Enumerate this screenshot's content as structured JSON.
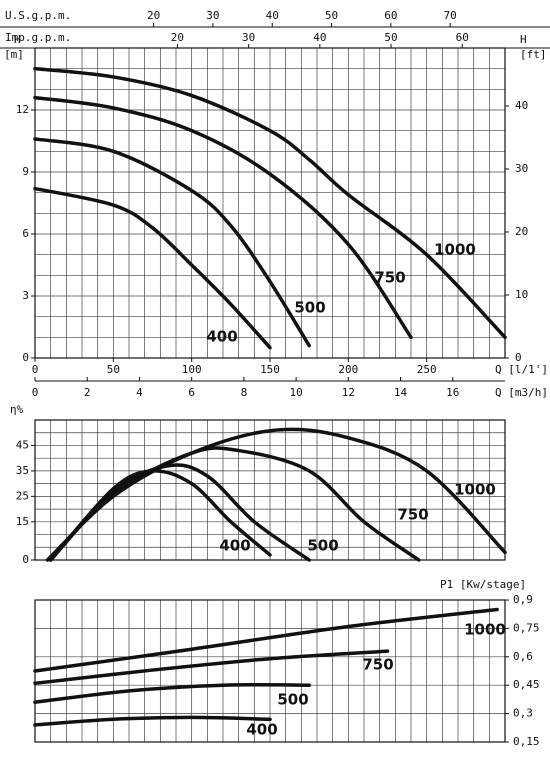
{
  "chart_data": [
    {
      "type": "line",
      "ylabel": "H",
      "yunit": "[m]",
      "ylim": [
        0,
        15
      ],
      "yticks": [
        0,
        3,
        6,
        9,
        12
      ],
      "y2label": "H",
      "y2unit": "[ft]",
      "y2lim": [
        0,
        49.2
      ],
      "y2ticks": [
        0,
        10,
        20,
        30,
        40
      ],
      "xlabel": "Q [l/1']",
      "xlim": [
        0,
        300
      ],
      "xticks": [
        0,
        50,
        100,
        150,
        200,
        250
      ],
      "x_grid_step": 10,
      "y_grid_step": 1,
      "extra_x_axes": [
        {
          "label": "Q [m3/h]",
          "lim": [
            0,
            18
          ],
          "ticks": [
            0,
            2,
            4,
            6,
            8,
            10,
            12,
            14,
            16
          ]
        },
        {
          "label": "U.S.g.p.m.",
          "lim": [
            0,
            79.25
          ],
          "ticks": [
            20,
            30,
            40,
            50,
            60,
            70
          ]
        },
        {
          "label": "Imp.g.p.m.",
          "lim": [
            0,
            66
          ],
          "ticks": [
            20,
            30,
            40,
            50,
            60
          ]
        }
      ],
      "series": [
        {
          "name": "1000",
          "color": "#111111",
          "x": [
            0,
            50,
            100,
            150,
            175,
            200,
            250,
            300
          ],
          "values": [
            14.0,
            13.6,
            12.7,
            11.0,
            9.6,
            7.9,
            5.0,
            1.0
          ]
        },
        {
          "name": "750",
          "color": "#111111",
          "x": [
            0,
            50,
            100,
            150,
            200,
            240
          ],
          "values": [
            12.6,
            12.1,
            11.0,
            8.9,
            5.5,
            1.0
          ]
        },
        {
          "name": "500",
          "color": "#111111",
          "x": [
            0,
            50,
            100,
            125,
            150,
            175
          ],
          "values": [
            10.6,
            10.0,
            8.1,
            6.4,
            3.7,
            0.6
          ]
        },
        {
          "name": "400",
          "color": "#111111",
          "x": [
            0,
            50,
            75,
            100,
            125,
            150
          ],
          "values": [
            8.2,
            7.4,
            6.3,
            4.5,
            2.6,
            0.5
          ]
        }
      ]
    },
    {
      "type": "line",
      "ylabel": "η%",
      "ylim": [
        0,
        55
      ],
      "yticks": [
        0,
        15,
        25,
        35,
        45
      ],
      "xlim": [
        0,
        300
      ],
      "x_grid_step": 10,
      "y_grid_step": 5,
      "series": [
        {
          "name": "1000",
          "color": "#111111",
          "x": [
            8,
            50,
            100,
            153,
            200,
            250,
            300
          ],
          "values": [
            0,
            25,
            42,
            51,
            48,
            35,
            3
          ]
        },
        {
          "name": "750",
          "color": "#111111",
          "x": [
            10,
            50,
            100,
            130,
            175,
            210,
            245
          ],
          "values": [
            0,
            26,
            42,
            43,
            35,
            15,
            0
          ]
        },
        {
          "name": "500",
          "color": "#111111",
          "x": [
            10,
            50,
            85,
            110,
            140,
            175
          ],
          "values": [
            0,
            27,
            37,
            33,
            15,
            0
          ]
        },
        {
          "name": "400",
          "color": "#111111",
          "x": [
            10,
            50,
            75,
            100,
            125,
            150
          ],
          "values": [
            0,
            28,
            35,
            30,
            15,
            2
          ]
        }
      ]
    },
    {
      "type": "line",
      "ylabel": "P1 [Kw/stage]",
      "ylim": [
        0.15,
        0.9
      ],
      "yticks": [
        {
          "value": 0.15,
          "label": "0,15"
        },
        {
          "value": 0.3,
          "label": "0,3"
        },
        {
          "value": 0.45,
          "label": "0,45"
        },
        {
          "value": 0.6,
          "label": "0,6"
        },
        {
          "value": 0.75,
          "label": "0,75"
        },
        {
          "value": 0.9,
          "label": "0,9"
        }
      ],
      "xlim": [
        0,
        300
      ],
      "x_grid_step": 10,
      "y_grid_step": 0.15,
      "series": [
        {
          "name": "1000",
          "color": "#111111",
          "x": [
            0,
            100,
            200,
            295
          ],
          "values": [
            0.525,
            0.64,
            0.76,
            0.85
          ]
        },
        {
          "name": "750",
          "color": "#111111",
          "x": [
            0,
            75,
            150,
            225
          ],
          "values": [
            0.46,
            0.53,
            0.59,
            0.63
          ]
        },
        {
          "name": "500",
          "color": "#111111",
          "x": [
            0,
            60,
            120,
            175
          ],
          "values": [
            0.36,
            0.42,
            0.45,
            0.45
          ]
        },
        {
          "name": "400",
          "color": "#111111",
          "x": [
            0,
            50,
            100,
            150
          ],
          "values": [
            0.24,
            0.27,
            0.28,
            0.27
          ]
        }
      ]
    }
  ]
}
